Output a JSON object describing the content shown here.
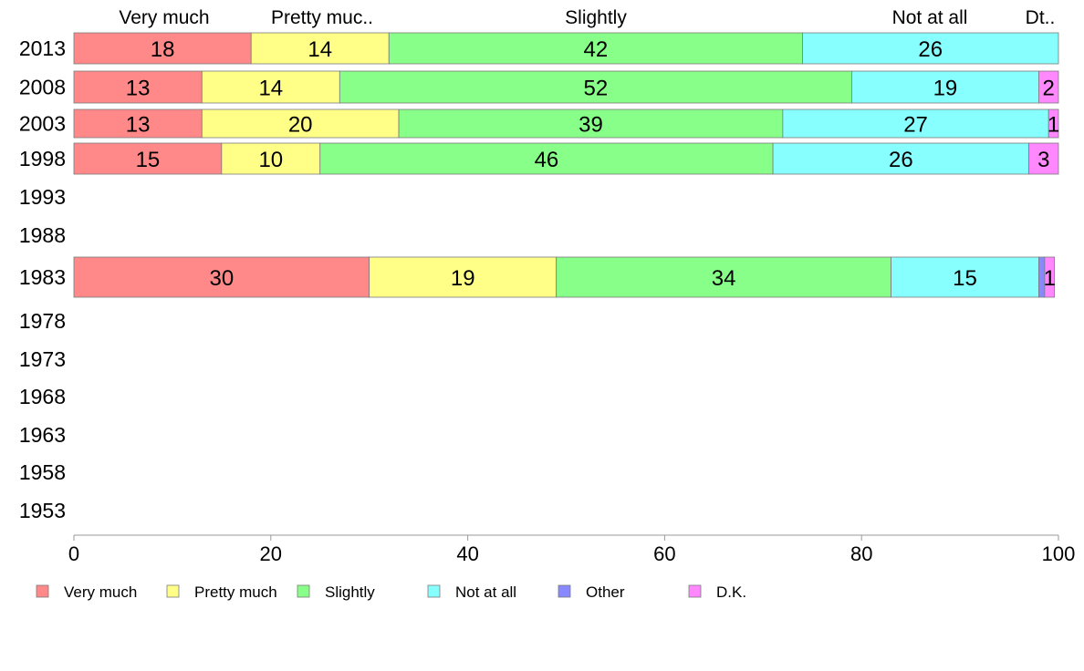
{
  "chart_data": {
    "type": "bar",
    "orientation": "horizontal",
    "stacked": true,
    "categories": [
      "2013",
      "2008",
      "2003",
      "1998",
      "1993",
      "1988",
      "1983",
      "1978",
      "1973",
      "1968",
      "1963",
      "1958",
      "1953"
    ],
    "series": [
      {
        "name": "Very much",
        "color": "#ff8888",
        "values": [
          18,
          13,
          13,
          15,
          null,
          null,
          30,
          null,
          null,
          null,
          null,
          null,
          null
        ]
      },
      {
        "name": "Pretty much",
        "color": "#ffff88",
        "values": [
          14,
          14,
          20,
          10,
          null,
          null,
          19,
          null,
          null,
          null,
          null,
          null,
          null
        ]
      },
      {
        "name": "Slightly",
        "color": "#88ff88",
        "values": [
          42,
          52,
          39,
          46,
          null,
          null,
          34,
          null,
          null,
          null,
          null,
          null,
          null
        ]
      },
      {
        "name": "Not at all",
        "color": "#88ffff",
        "values": [
          26,
          19,
          27,
          26,
          null,
          null,
          15,
          null,
          null,
          null,
          null,
          null,
          null
        ]
      },
      {
        "name": "Other",
        "color": "#8888ff",
        "values": [
          0,
          0,
          0,
          0,
          null,
          null,
          0.6,
          null,
          null,
          null,
          null,
          null,
          null
        ]
      },
      {
        "name": "D.K.",
        "color": "#ff88ff",
        "values": [
          0.2,
          2,
          1,
          3,
          null,
          null,
          1,
          null,
          null,
          null,
          null,
          null,
          null
        ]
      }
    ],
    "segment_labels": [
      [
        "18",
        "14",
        "42",
        "26",
        "",
        ""
      ],
      [
        "13",
        "14",
        "52",
        "19",
        "",
        "2"
      ],
      [
        "13",
        "20",
        "39",
        "27",
        "",
        "1"
      ],
      [
        "15",
        "10",
        "46",
        "26",
        "",
        "3"
      ],
      [],
      [],
      [
        "30",
        "19",
        "34",
        "15",
        "",
        "1"
      ],
      [],
      [],
      [],
      [],
      [],
      []
    ],
    "column_headers": [
      "Very much",
      "Pretty muc..",
      "Slightly",
      "Not at all",
      "Dt.."
    ],
    "x_ticks": [
      "0",
      "20",
      "40",
      "60",
      "80",
      "100"
    ],
    "xlim": [
      0,
      100
    ],
    "legend_position": "bottom",
    "grid": false
  }
}
